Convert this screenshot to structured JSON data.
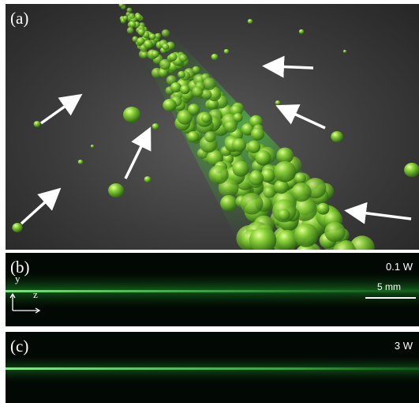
{
  "panels": {
    "a": {
      "letter": "(a)"
    },
    "b": {
      "letter": "(b)",
      "power": "0.1 W"
    },
    "c": {
      "letter": "(c)",
      "power": "3 W"
    }
  },
  "axes": {
    "y": "y",
    "z": "z"
  },
  "scalebar": {
    "label": "5 mm"
  },
  "colors": {
    "beam": "#39ff3a",
    "droplet": "#7fd13a",
    "droplet_dark": "#3a7a14",
    "arrow": "#ffffff"
  }
}
